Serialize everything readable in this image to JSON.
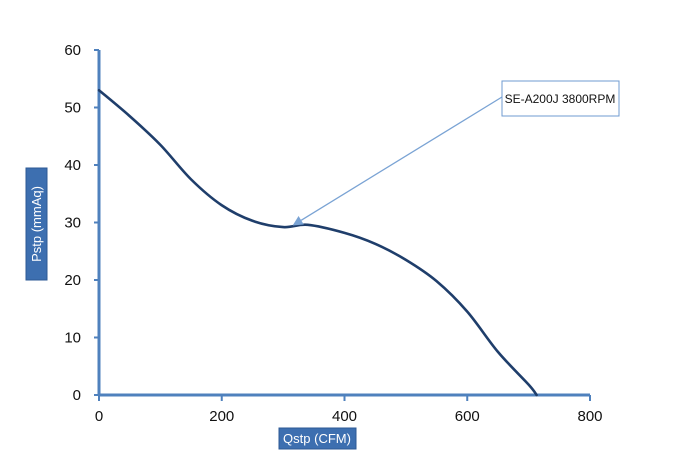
{
  "chart_data": {
    "type": "line",
    "xlabel": "Qstp (CFM)",
    "ylabel": "Pstp  (mmAq)",
    "xlim": [
      0,
      800
    ],
    "ylim": [
      0,
      60
    ],
    "x_ticks": [
      "0",
      "200",
      "400",
      "600",
      "800"
    ],
    "y_ticks": [
      "0",
      "10",
      "20",
      "30",
      "40",
      "50",
      "60"
    ],
    "grid": false,
    "series": [
      {
        "name": "SE-A200J 3800RPM",
        "x": [
          0,
          50,
          100,
          150,
          200,
          250,
          300,
          340,
          400,
          450,
          500,
          550,
          600,
          650,
          700,
          713
        ],
        "y": [
          53,
          48.5,
          43.5,
          37.5,
          33,
          30.3,
          29.2,
          29.6,
          28.2,
          26.3,
          23.5,
          19.8,
          14.5,
          7.5,
          1.8,
          0
        ]
      }
    ],
    "annotation": {
      "text": "SE-A200J 3800RPM",
      "points_to": {
        "x": 410,
        "y": 30
      }
    },
    "colors": {
      "line": "#1f3e6b",
      "axis": "#4f81bd",
      "label_box": "#3d6fb0",
      "arrow": "#7aa3d4"
    }
  }
}
